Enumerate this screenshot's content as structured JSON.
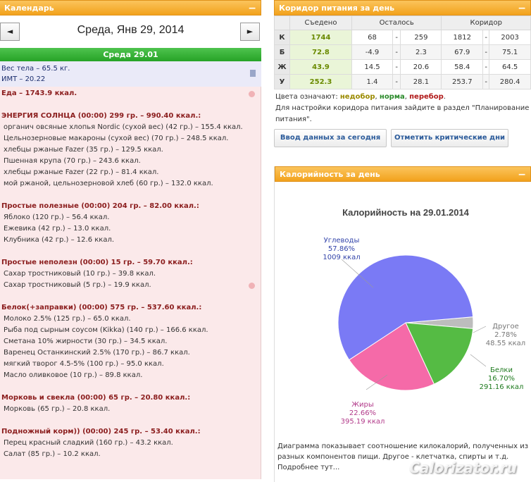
{
  "calendar": {
    "title": "Календарь",
    "prev": "◄",
    "next": "►",
    "date": "Среда, Янв 29, 2014",
    "day_bar": "Среда 29.01",
    "weight": "Вес тела – 65.5 кг.",
    "bmi": "ИМТ – 20.22",
    "food_total": "Еда – 1743.9 ккал.",
    "meals": [
      {
        "head": "ЭНЕРГИЯ СОЛНЦА (00:00) 299 гр. – 990.40 ккал.:",
        "items": [
          "органич овсяные хлопья Nordic (сухой вес) (42 гр.) – 155.4 ккал.",
          "Цельнозерновые макароны (сухой вес) (70 гр.) – 248.5 ккал.",
          "хлебцы ржаные Fazer (35 гр.) – 129.5 ккал.",
          "Пшенная крупа (70 гр.) – 243.6 ккал.",
          "хлебцы ржаные Fazer (22 гр.) – 81.4 ккал.",
          "мой ржаной, цельнозерновой хлеб (60 гр.) – 132.0 ккал."
        ]
      },
      {
        "head": "Простые полезные (00:00) 204 гр. – 82.00 ккал.:",
        "items": [
          "Яблоко (120 гр.) – 56.4 ккал.",
          "Ежевика (42 гр.) – 13.0 ккал.",
          "Клубника (42 гр.) – 12.6 ккал."
        ]
      },
      {
        "head": "Простые неполезн (00:00) 15 гр. – 59.70 ккал.:",
        "items": [
          "Сахар тростниковый (10 гр.) – 39.8 ккал.",
          "Сахар тростниковый (5 гр.) – 19.9 ккал."
        ]
      },
      {
        "head": "Белок(+заправки) (00:00) 575 гр. – 537.60 ккал.:",
        "items": [
          "Молоко 2.5% (125 гр.) – 65.0 ккал.",
          "Рыба под сырным соусом (Kikka) (140 гр.) – 166.6 ккал.",
          "Сметана 10% жирности (30 гр.) – 34.5 ккал.",
          "Варенец Останкинский 2.5% (170 гр.) – 86.7 ккал.",
          "мягкий творог 4.5-5% (100 гр.) – 95.0 ккал.",
          "Масло оливковое (10 гр.) – 89.8 ккал."
        ]
      },
      {
        "head": "Морковь и свекла (00:00) 65 гр. – 20.80 ккал.:",
        "items": [
          "Морковь (65 гр.) – 20.8 ккал."
        ]
      },
      {
        "head": "Подножный корм)) (00:00) 245 гр. – 53.40 ккал.:",
        "items": [
          "Перец красный сладкий (160 гр.) – 43.2 ккал.",
          "Салат (85 гр.) – 10.2 ккал."
        ]
      }
    ]
  },
  "corridor": {
    "title": "Коридор питания за день",
    "headers": [
      "Съедено",
      "Осталось",
      "Коридор"
    ],
    "rows": [
      {
        "label": "К",
        "eaten": "1744",
        "left_from": "68",
        "left_dash": "-",
        "left_to": "259",
        "cor_from": "1812",
        "cor_dash": "-",
        "cor_to": "2003"
      },
      {
        "label": "Б",
        "eaten": "72.8",
        "left_from": "-4.9",
        "left_dash": "-",
        "left_to": "2.3",
        "cor_from": "67.9",
        "cor_dash": "-",
        "cor_to": "75.1"
      },
      {
        "label": "Ж",
        "eaten": "43.9",
        "left_from": "14.5",
        "left_dash": "-",
        "left_to": "20.6",
        "cor_from": "58.4",
        "cor_dash": "-",
        "cor_to": "64.5"
      },
      {
        "label": "У",
        "eaten": "252.3",
        "left_from": "1.4",
        "left_dash": "-",
        "left_to": "28.1",
        "cor_from": "253.7",
        "cor_dash": "-",
        "cor_to": "280.4"
      }
    ],
    "legend_prefix": "Цвета означают:",
    "legend_under": "недобор",
    "legend_norm": "норма",
    "legend_over": "перебор",
    "hint": "Для настройки коридора питания зайдите в раздел \"Планирование питания\".",
    "btn_enter": "Ввод данных за сегодня",
    "btn_critical": "Отметить критические дни"
  },
  "calories": {
    "title": "Калорийность за день",
    "caption": "Диаграмма показывает соотношение килокалорий, полученных из разных компонентов пищи. Другое - клетчатка, спирты и т.д.",
    "more": "Подробнее тут..."
  },
  "chart_data": {
    "type": "pie",
    "title": "Калорийность на 29.01.2014",
    "slices": [
      {
        "name": "Углеводы",
        "percent": "57.86%",
        "kcal": "1009 ккал",
        "value": 57.86,
        "color": "#7a7af5",
        "label_color": "#3344aa"
      },
      {
        "name": "Другое",
        "percent": "2.78%",
        "kcal": "48.55 ккал",
        "value": 2.78,
        "color": "#bdbdbd",
        "label_color": "#777777"
      },
      {
        "name": "Белки",
        "percent": "16.70%",
        "kcal": "291.16 ккал",
        "value": 16.7,
        "color": "#55bb44",
        "label_color": "#1e7a1e"
      },
      {
        "name": "Жиры",
        "percent": "22.66%",
        "kcal": "395.19 ккал",
        "value": 22.66,
        "color": "#f56aa8",
        "label_color": "#b23a8a"
      }
    ]
  },
  "watermark": "Calorizator.ru"
}
